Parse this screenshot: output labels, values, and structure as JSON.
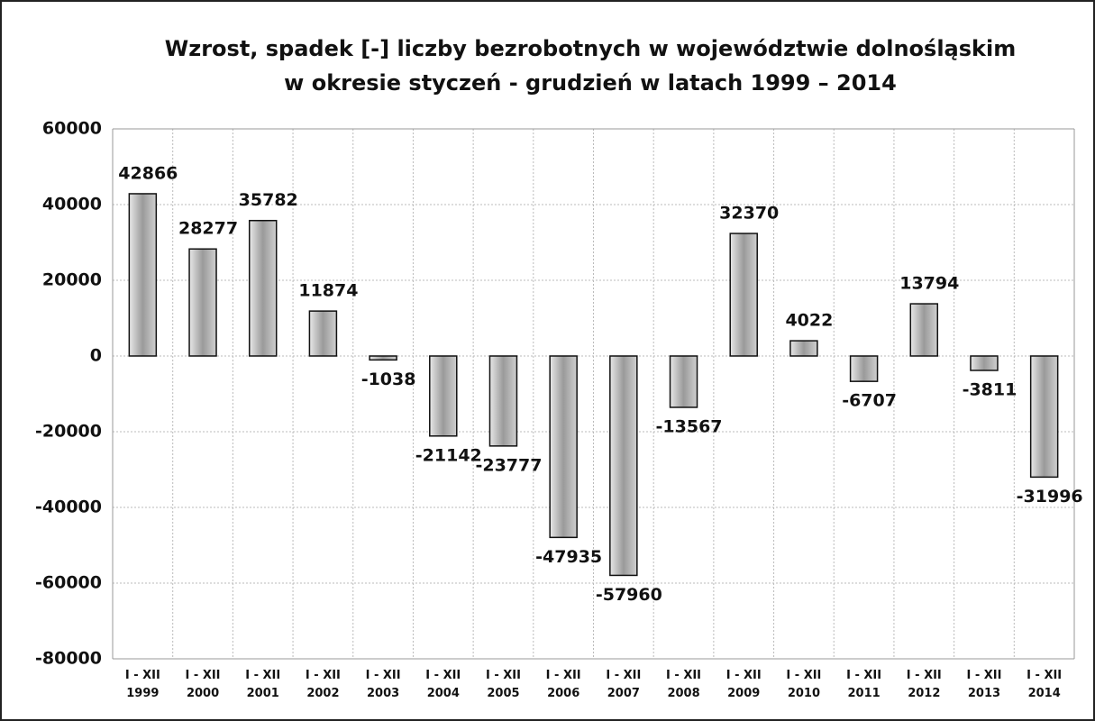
{
  "chart_data": {
    "type": "bar",
    "title": "Wzrost, spadek [-] liczby bezrobotnych w województwie dolnośląskim\nw okresie styczeń - grudzień w latach 1999 – 2014",
    "categories": [
      "I - XII\n1999",
      "I - XII\n2000",
      "I - XII\n2001",
      "I - XII\n2002",
      "I - XII\n2003",
      "I - XII\n2004",
      "I - XII\n2005",
      "I - XII\n2006",
      "I - XII\n2007",
      "I - XII\n2008",
      "I - XII\n2009",
      "I - XII\n2010",
      "I - XII\n2011",
      "I - XII\n2012",
      "I - XII\n2013",
      "I - XII\n2014"
    ],
    "values": [
      42866,
      28277,
      35782,
      11874,
      -1038,
      -21142,
      -23777,
      -47935,
      -57960,
      -13567,
      32370,
      4022,
      -6707,
      13794,
      -3811,
      -31996
    ],
    "color": "#a8a8a8",
    "ylim": [
      -80000,
      60000
    ],
    "yticks": [
      -80000,
      -60000,
      -40000,
      -20000,
      0,
      20000,
      40000,
      60000
    ],
    "grid": true
  }
}
